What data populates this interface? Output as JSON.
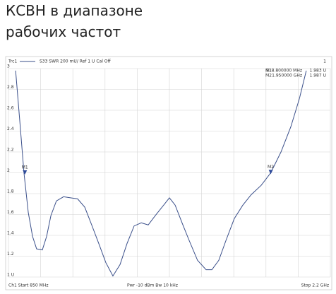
{
  "title_lines": [
    "КСВН в диапазоне",
    "рабочих частот"
  ],
  "chart_data": {
    "type": "line",
    "header": {
      "trace": "Trc1",
      "measurement": "S33  SWR  200 mU/ Ref 1 U  Cal Off",
      "channel_number": "1"
    },
    "footer": {
      "start": "Ch1  Start  850 MHz",
      "power": "Pwr  -10 dBm  Bw  10 kHz",
      "stop": "Stop  2.2 GHz"
    },
    "x": [
      880,
      897,
      915,
      933,
      951,
      968,
      992,
      1010,
      1028,
      1051,
      1081,
      1110,
      1140,
      1170,
      1199,
      1229,
      1258,
      1288,
      1318,
      1347,
      1377,
      1407,
      1436,
      1466,
      1501,
      1525,
      1549,
      1578,
      1608,
      1643,
      1679,
      1703,
      1732,
      1762,
      1797,
      1833,
      1868,
      1910,
      1950,
      1993,
      2034,
      2070,
      2099
    ],
    "series": [
      {
        "name": "S33",
        "color": "#3a4f8a",
        "values": [
          2.98,
          2.51,
          2.0,
          1.62,
          1.39,
          1.27,
          1.26,
          1.39,
          1.59,
          1.73,
          1.77,
          1.76,
          1.75,
          1.67,
          1.5,
          1.32,
          1.14,
          1.01,
          1.12,
          1.32,
          1.49,
          1.52,
          1.5,
          1.59,
          1.69,
          1.76,
          1.69,
          1.52,
          1.35,
          1.16,
          1.07,
          1.07,
          1.16,
          1.35,
          1.56,
          1.69,
          1.79,
          1.88,
          2.0,
          2.2,
          2.44,
          2.71,
          2.98
        ]
      }
    ],
    "markers": [
      {
        "name": "M1",
        "x": 918.8,
        "x_label": "918.800000 MHz",
        "value": 1.983,
        "value_label": "1.983 U"
      },
      {
        "name": "M2",
        "x": 1950,
        "x_label": "1.950000 GHz",
        "value": 1.987,
        "value_label": "1.987 U"
      }
    ],
    "xlim": [
      850,
      2200
    ],
    "xticks": [
      850,
      985,
      1120,
      1255,
      1390,
      1525,
      1660,
      1795,
      1930,
      2065,
      2200
    ],
    "ylim": [
      1,
      3
    ],
    "yticks": [
      {
        "value": 1,
        "label": "1 U"
      },
      1.2,
      1.4,
      1.6,
      1.8,
      2,
      2.2,
      2.4,
      2.6,
      2.8,
      3
    ],
    "grid": true
  }
}
